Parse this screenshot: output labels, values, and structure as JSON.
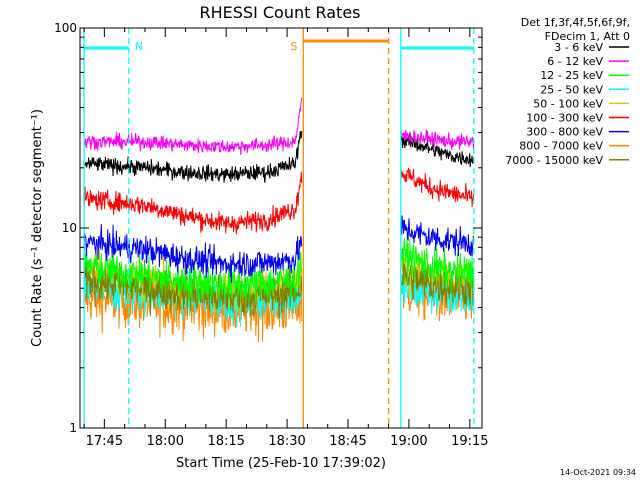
{
  "chart_data": {
    "type": "line",
    "title": "RHESSI Count Rates",
    "xlabel": "Start Time (25-Feb-10 17:39:02)",
    "ylabel": "Count Rate (s⁻¹ detector segment⁻¹)",
    "yscale": "log",
    "ylim": [
      1,
      100
    ],
    "xlim": [
      "17:39",
      "19:18"
    ],
    "x_ticks": [
      "17:45",
      "18:00",
      "18:15",
      "18:30",
      "18:45",
      "19:00",
      "19:15"
    ],
    "y_ticks": [
      "1",
      "10",
      "100"
    ],
    "legend_position": "top-right",
    "legend_header": [
      "Det 1f,3f,4f,5f,6f,9f,",
      "FDecim 1, Att 0"
    ],
    "timestamp": "14-Oct-2021 09:34",
    "series": [
      {
        "name": "3 - 6 keV",
        "color": "#000000",
        "x": [
          "17:40",
          "17:55",
          "18:05",
          "18:15",
          "18:25",
          "18:32",
          "18:34",
          "18:58",
          "19:05",
          "19:10",
          "19:16"
        ],
        "values": [
          21,
          20,
          19,
          18.5,
          19,
          21,
          35,
          28,
          25,
          23,
          22
        ]
      },
      {
        "name": "6 - 12 keV",
        "color": "#ff00ff",
        "x": [
          "17:40",
          "17:55",
          "18:05",
          "18:15",
          "18:25",
          "18:32",
          "18:34",
          "18:58",
          "19:05",
          "19:10",
          "19:16"
        ],
        "values": [
          27,
          27,
          26,
          25.5,
          26,
          27,
          50,
          29,
          28,
          27,
          27
        ]
      },
      {
        "name": "12 - 25 keV",
        "color": "#00ff00",
        "x": [
          "17:40",
          "17:55",
          "18:05",
          "18:15",
          "18:25",
          "18:32",
          "18:34",
          "18:58",
          "19:05",
          "19:10",
          "19:16"
        ],
        "values": [
          6.5,
          5.8,
          5.4,
          5.2,
          5.3,
          5.6,
          7,
          7.5,
          6.5,
          6,
          6
        ]
      },
      {
        "name": "25 - 50 keV",
        "color": "#00ffff",
        "x": [
          "17:40",
          "17:55",
          "18:05",
          "18:15",
          "18:25",
          "18:32",
          "18:34",
          "18:58",
          "19:05",
          "19:10",
          "19:16"
        ],
        "values": [
          5,
          4.8,
          4.6,
          4.4,
          4.4,
          4.6,
          5,
          5,
          4.8,
          4.6,
          4.6
        ]
      },
      {
        "name": "50 - 100 keV",
        "color": "#cccc00",
        "x": [
          "17:40",
          "17:55",
          "18:05",
          "18:15",
          "18:25",
          "18:32",
          "18:34",
          "18:58",
          "19:05",
          "19:10",
          "19:16"
        ],
        "values": [
          6,
          5.4,
          5.0,
          4.8,
          5.0,
          5.3,
          6,
          6.5,
          5.8,
          5.5,
          5.4
        ]
      },
      {
        "name": "100 - 300 keV",
        "color": "#ff0000",
        "x": [
          "17:40",
          "17:55",
          "18:05",
          "18:15",
          "18:25",
          "18:32",
          "18:34",
          "18:58",
          "19:05",
          "19:10",
          "19:16"
        ],
        "values": [
          14,
          13,
          11.5,
          10.5,
          11,
          12.5,
          20,
          19,
          16,
          15,
          14
        ]
      },
      {
        "name": "300 - 800 keV",
        "color": "#0000ff",
        "x": [
          "17:40",
          "17:55",
          "18:05",
          "18:15",
          "18:25",
          "18:32",
          "18:34",
          "18:58",
          "19:05",
          "19:10",
          "19:16"
        ],
        "values": [
          8.5,
          7.8,
          7.0,
          6.6,
          6.7,
          7.0,
          9,
          10,
          9,
          8.6,
          8.4
        ]
      },
      {
        "name": "800 - 7000 keV",
        "color": "#ff8800",
        "x": [
          "17:40",
          "17:55",
          "18:05",
          "18:15",
          "18:25",
          "18:32",
          "18:34",
          "18:58",
          "19:05",
          "19:10",
          "19:16"
        ],
        "values": [
          4.5,
          4.2,
          4.0,
          3.9,
          3.9,
          4.0,
          4.3,
          5,
          4.6,
          4.4,
          4.4
        ]
      },
      {
        "name": "7000 - 15000 keV",
        "color": "#808000",
        "x": [
          "17:40",
          "17:55",
          "18:05",
          "18:15",
          "18:25",
          "18:32",
          "18:34",
          "18:58",
          "19:05",
          "19:10",
          "19:16"
        ],
        "values": [
          5.5,
          5.0,
          4.7,
          4.5,
          4.6,
          4.8,
          5.2,
          5.8,
          5.3,
          5.1,
          5.0
        ]
      }
    ],
    "annotations": [
      {
        "label": "N",
        "color": "#00ffff",
        "x": "17:51"
      },
      {
        "label": "S",
        "color": "#ff8800",
        "x": "18:34"
      }
    ]
  }
}
